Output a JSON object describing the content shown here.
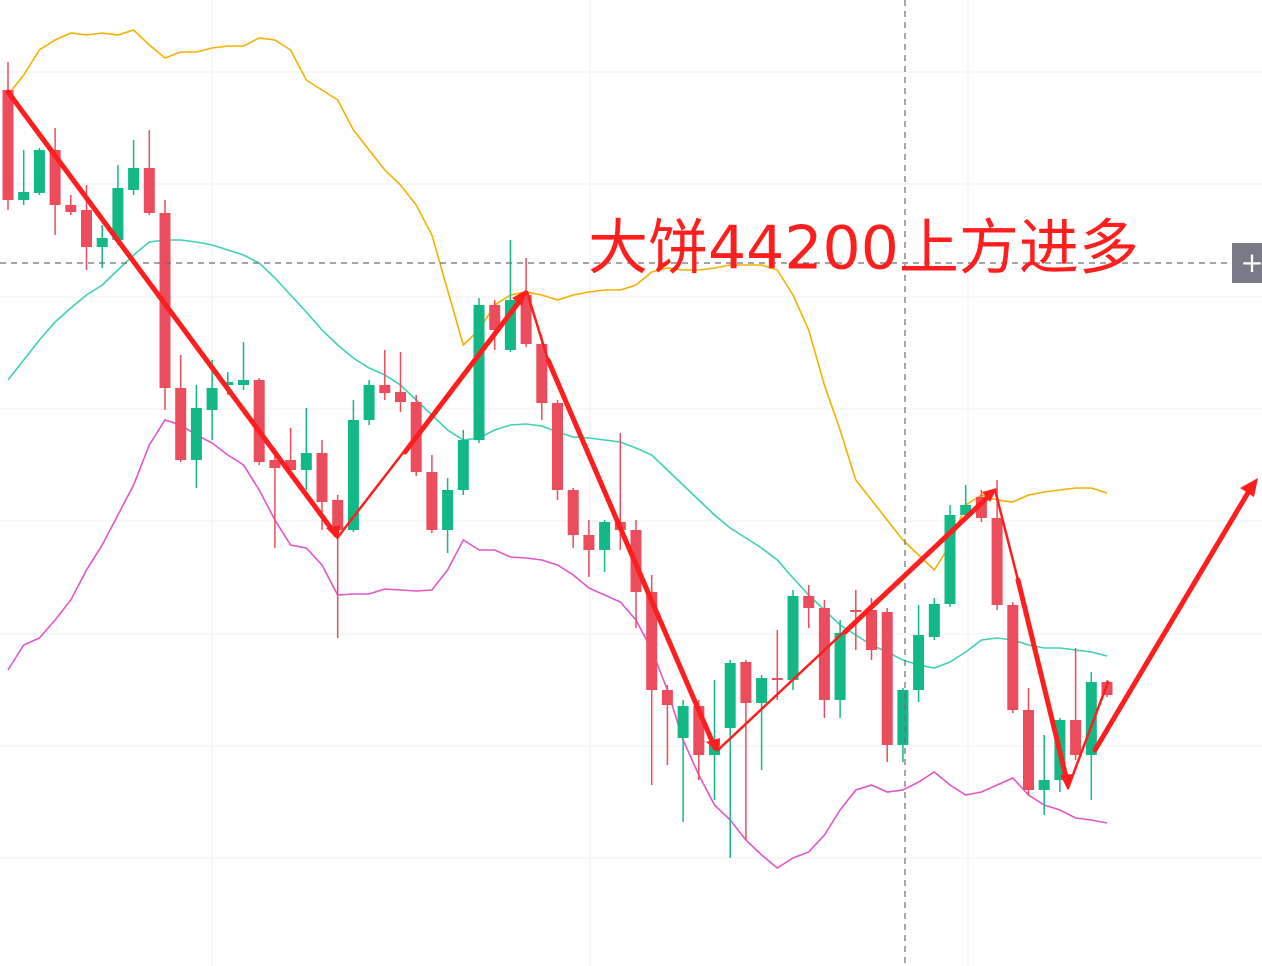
{
  "chart_data": {
    "type": "candlestick",
    "annotation": "大饼44200上方进多",
    "button": "+",
    "ylim": [
      34,
      1000
    ],
    "up_color": "#12b886",
    "down_color": "#eb4d5c",
    "open": [
      910,
      800,
      807,
      850,
      795,
      790,
      753,
      760,
      810,
      832,
      787,
      612,
      540,
      590,
      615,
      615,
      620,
      540,
      540,
      530,
      547,
      500,
      470,
      580,
      615,
      608,
      598,
      528,
      470,
      510,
      560,
      695,
      650,
      705,
      656,
      597,
      510,
      465,
      450,
      478,
      470,
      408,
      310,
      262,
      294,
      245,
      272,
      338,
      297,
      322,
      320,
      404,
      392,
      300,
      390,
      390,
      388,
      255,
      310,
      363,
      396,
      485,
      503,
      482,
      395,
      290,
      210,
      220,
      280,
      245,
      318
    ],
    "high": [
      938,
      850,
      852,
      872,
      805,
      815,
      775,
      835,
      860,
      870,
      800,
      645,
      615,
      640,
      628,
      658,
      622,
      552,
      572,
      592,
      560,
      505,
      600,
      620,
      650,
      648,
      605,
      545,
      522,
      570,
      702,
      700,
      760,
      742,
      665,
      600,
      512,
      480,
      480,
      567,
      480,
      425,
      315,
      300,
      300,
      320,
      340,
      340,
      325,
      370,
      410,
      415,
      400,
      380,
      410,
      402,
      392,
      312,
      395,
      402,
      495,
      515,
      510,
      520,
      398,
      312,
      265,
      282,
      352,
      328,
      320
    ],
    "low": [
      790,
      795,
      805,
      765,
      785,
      730,
      732,
      755,
      805,
      785,
      590,
      538,
      512,
      560,
      605,
      610,
      535,
      452,
      522,
      510,
      470,
      362,
      468,
      575,
      600,
      588,
      524,
      467,
      447,
      505,
      557,
      650,
      648,
      653,
      580,
      500,
      452,
      423,
      428,
      450,
      372,
      215,
      235,
      178,
      220,
      200,
      142,
      160,
      230,
      300,
      310,
      372,
      282,
      282,
      350,
      340,
      238,
      238,
      298,
      360,
      393,
      482,
      478,
      390,
      287,
      205,
      185,
      208,
      240,
      200,
      303
    ],
    "close": [
      800,
      808,
      850,
      795,
      788,
      753,
      762,
      812,
      832,
      787,
      612,
      540,
      592,
      612,
      618,
      620,
      538,
      532,
      530,
      547,
      498,
      470,
      580,
      615,
      607,
      598,
      528,
      470,
      510,
      560,
      695,
      670,
      700,
      656,
      597,
      510,
      465,
      450,
      478,
      470,
      408,
      310,
      295,
      294,
      245,
      260,
      337,
      297,
      322,
      320,
      404,
      392,
      300,
      367,
      388,
      350,
      255,
      310,
      365,
      396,
      485,
      495,
      482,
      395,
      290,
      210,
      220,
      280,
      245,
      318,
      305
    ],
    "series": [
      {
        "color": "#f5b100",
        "values": [
          905,
          925,
          950,
          960,
          967,
          965,
          967,
          965,
          970,
          955,
          942,
          948,
          948,
          952,
          954,
          954,
          962,
          960,
          950,
          920,
          910,
          900,
          870,
          850,
          830,
          815,
          795,
          765,
          710,
          655,
          670,
          695,
          705,
          708,
          705,
          700,
          705,
          708,
          710,
          710,
          715,
          728,
          732,
          730,
          730,
          732,
          735,
          735,
          735,
          730,
          705,
          670,
          615,
          570,
          520,
          500,
          480,
          460,
          445,
          430,
          455,
          495,
          505,
          500,
          498,
          505,
          508,
          510,
          512,
          512,
          507
        ]
      },
      {
        "color": "#3fd1b4",
        "values": [
          620,
          640,
          660,
          678,
          692,
          705,
          715,
          730,
          745,
          758,
          760,
          760,
          758,
          755,
          750,
          745,
          737,
          722,
          705,
          688,
          670,
          655,
          642,
          632,
          625,
          615,
          600,
          585,
          570,
          560,
          562,
          570,
          575,
          576,
          574,
          568,
          563,
          562,
          560,
          558,
          552,
          545,
          530,
          515,
          500,
          485,
          472,
          462,
          452,
          440,
          422,
          405,
          390,
          375,
          365,
          355,
          348,
          340,
          335,
          332,
          338,
          348,
          360,
          362,
          360,
          355,
          352,
          352,
          350,
          348,
          344
        ]
      },
      {
        "color": "#e356c8",
        "values": [
          330,
          355,
          362,
          380,
          400,
          430,
          455,
          485,
          515,
          555,
          580,
          575,
          565,
          557,
          545,
          535,
          510,
          480,
          455,
          452,
          435,
          405,
          406,
          406,
          411,
          410,
          409,
          410,
          430,
          460,
          450,
          450,
          443,
          442,
          440,
          435,
          425,
          412,
          405,
          398,
          380,
          350,
          310,
          260,
          225,
          195,
          180,
          160,
          145,
          132,
          142,
          148,
          165,
          190,
          210,
          215,
          208,
          210,
          218,
          228,
          215,
          205,
          208,
          215,
          222,
          205,
          195,
          190,
          182,
          180,
          177
        ]
      }
    ]
  }
}
